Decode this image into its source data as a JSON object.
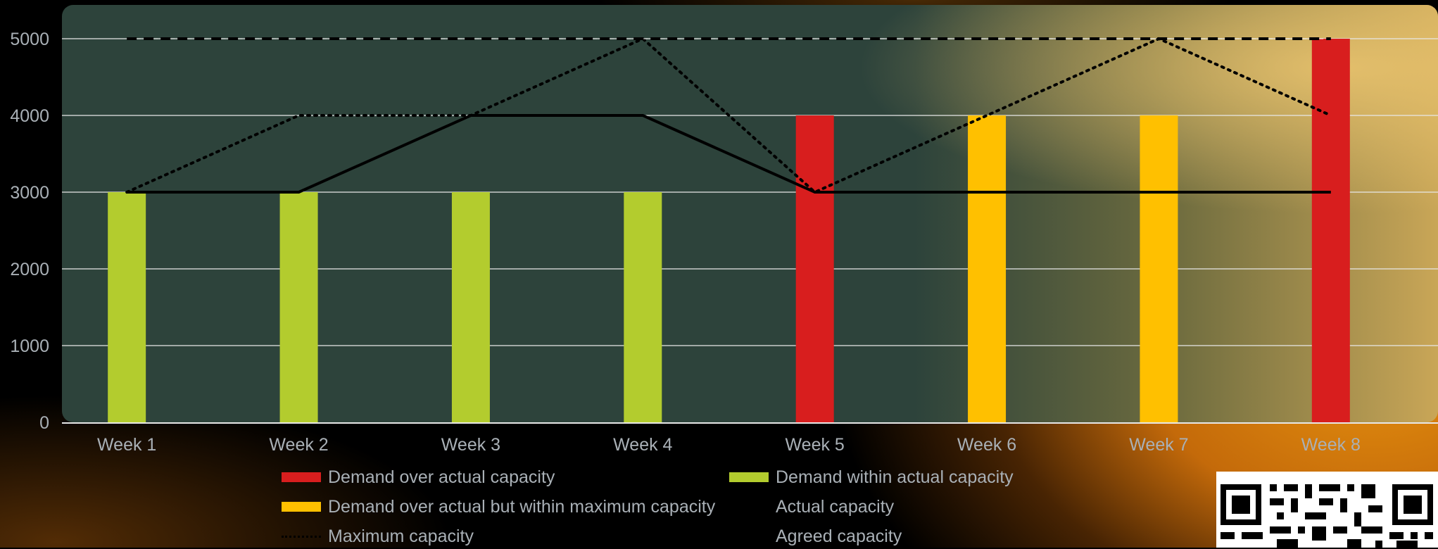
{
  "chart_data": {
    "type": "bar",
    "categories": [
      "Week 1",
      "Week 2",
      "Week 3",
      "Week 4",
      "Week 5",
      "Week 6",
      "Week 7",
      "Week 8"
    ],
    "bars": {
      "values": [
        3000,
        3000,
        3000,
        3000,
        4000,
        4000,
        4000,
        5000
      ],
      "status": [
        "within",
        "within",
        "within",
        "within",
        "over",
        "over_within_max",
        "over_within_max",
        "over"
      ]
    },
    "series": [
      {
        "key": "actual",
        "name": "Actual capacity",
        "style": "solid",
        "values": [
          3000,
          3000,
          4000,
          4000,
          3000,
          3000,
          3000,
          3000
        ]
      },
      {
        "key": "maximum",
        "name": "Maximum capacity",
        "style": "dotted",
        "values": [
          3000,
          4000,
          4000,
          5000,
          3000,
          4000,
          5000,
          4000
        ]
      },
      {
        "key": "agreed",
        "name": "Agreed capacity",
        "style": "dashed",
        "values": [
          5000,
          5000,
          5000,
          5000,
          5000,
          5000,
          5000,
          5000
        ]
      }
    ],
    "yticks": [
      "0",
      "1000",
      "2000",
      "3000",
      "4000",
      "5000"
    ],
    "ylim": [
      0,
      5000
    ],
    "grid": true,
    "legend_position": "bottom",
    "title": "",
    "xlabel": "",
    "ylabel": ""
  },
  "legend": [
    {
      "label": "Demand over actual capacity",
      "kind": "swatch",
      "color": "#d81e1e"
    },
    {
      "label": "Demand within actual capacity",
      "kind": "swatch",
      "color": "#b3cc2e"
    },
    {
      "label": "Demand over actual but within maximum capacity",
      "kind": "swatch",
      "color": "#ffc000"
    },
    {
      "label": "Actual capacity",
      "kind": "line",
      "style": "solid"
    },
    {
      "label": "Maximum capacity",
      "kind": "line",
      "style": "dotted"
    },
    {
      "label": "Agreed capacity",
      "kind": "line",
      "style": "dashed"
    }
  ],
  "colors": {
    "over": "#d81e1e",
    "within": "#b3cc2e",
    "over_within_max": "#ffc000",
    "plot_bg": "#2d433b",
    "line": "#000000",
    "grid": "#e8e8e8",
    "tick_text": "#a9b0b6"
  },
  "qr_icon": "qr-code-icon"
}
